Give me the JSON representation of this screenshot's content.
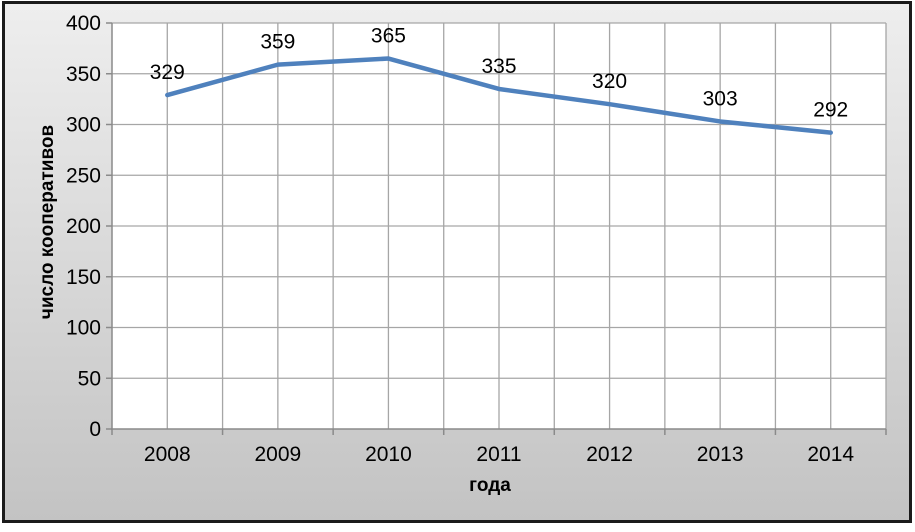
{
  "chart_data": {
    "type": "line",
    "title": "",
    "categories": [
      "2008",
      "2009",
      "2010",
      "2011",
      "2012",
      "2013",
      "2014"
    ],
    "values": [
      329,
      359,
      365,
      335,
      320,
      303,
      292
    ],
    "xlabel": "года",
    "ylabel": "число кооперативов",
    "ylim": [
      0,
      400
    ],
    "yticks": [
      0,
      50,
      100,
      150,
      200,
      250,
      300,
      350,
      400
    ],
    "grid": "horizontal-and-vertical",
    "legend": "none",
    "data_labels_shown": true,
    "colors": {
      "line": "#4F81BD",
      "gridline": "#a6a6a6",
      "axis": "#8a8a8a",
      "plot_background": "#ffffff",
      "chart_background_top": "#eeeeee",
      "chart_background_bottom": "#c3c3c3",
      "frame_border": "#1b1b1b",
      "text": "#000000"
    }
  }
}
